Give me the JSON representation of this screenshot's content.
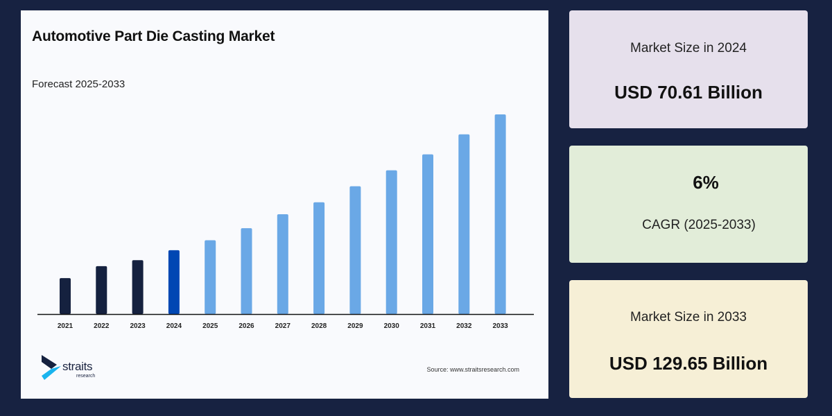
{
  "colors": {
    "background": "#172241",
    "historical": "#15213f",
    "base_year": "#0047b3",
    "forecast": "#6aa8e6"
  },
  "chart_data": {
    "type": "bar",
    "title": "Automotive Part Die Casting Market",
    "subtitle": "Forecast 2025-2033",
    "categories": [
      "2021",
      "2022",
      "2023",
      "2024",
      "2025",
      "2026",
      "2027",
      "2028",
      "2029",
      "2030",
      "2031",
      "2032",
      "2033"
    ],
    "values": [
      18,
      24,
      27,
      32,
      37,
      43,
      50,
      56,
      64,
      72,
      80,
      90,
      100
    ],
    "value_note_visible": false,
    "y_axis_shown": false,
    "grid": false,
    "bar_groups": [
      "historical",
      "historical",
      "historical",
      "base_year",
      "forecast",
      "forecast",
      "forecast",
      "forecast",
      "forecast",
      "forecast",
      "forecast",
      "forecast",
      "forecast"
    ]
  },
  "logo": {
    "name": "straits",
    "sub": "research"
  },
  "source": "Source: www.straitsresearch.com",
  "cards": [
    {
      "label": "Market Size in 2024",
      "value": "USD 70.61 Billion",
      "bg": "#e6e0ec"
    },
    {
      "value": "6%",
      "label": "CAGR (2025-2033)",
      "bg": "#e2edd9"
    },
    {
      "label": "Market Size in 2033",
      "value": "USD 129.65 Billion",
      "bg": "#f6efd6"
    }
  ]
}
